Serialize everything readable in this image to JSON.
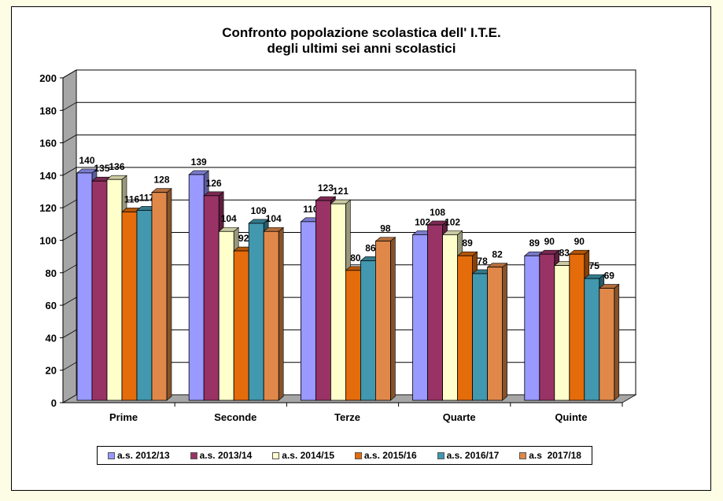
{
  "chart_data": {
    "type": "bar",
    "title": "Confronto popolazione scolastica dell' I.T.E.\ndegli ultimi sei anni scolastici",
    "title_lines": [
      "Confronto popolazione scolastica dell' I.T.E.",
      "degli ultimi sei anni scolastici"
    ],
    "categories": [
      "Prime",
      "Seconde",
      "Terze",
      "Quarte",
      "Quinte"
    ],
    "series": [
      {
        "name": "a.s. 2012/13",
        "color": "#9999ff",
        "values": [
          140,
          139,
          110,
          102,
          89
        ]
      },
      {
        "name": "a.s. 2013/14",
        "color": "#993366",
        "values": [
          135,
          126,
          123,
          108,
          90
        ]
      },
      {
        "name": "a.s. 2014/15",
        "color": "#ffffcc",
        "values": [
          136,
          104,
          121,
          102,
          83
        ]
      },
      {
        "name": "a.s. 2015/16",
        "color": "#e46c0a",
        "values": [
          116,
          92,
          80,
          89,
          90
        ]
      },
      {
        "name": "a.s. 2016/17",
        "color": "#4198af",
        "values": [
          117,
          109,
          86,
          78,
          75
        ]
      },
      {
        "name": "a.s  2017/18",
        "color": "#e0884a",
        "values": [
          128,
          104,
          98,
          82,
          69
        ]
      }
    ],
    "ylim": [
      0,
      200
    ],
    "yticks": [
      0,
      20,
      40,
      60,
      80,
      100,
      120,
      140,
      160,
      180,
      200
    ],
    "grid": true,
    "legend": "bottom",
    "style": "3d-column"
  }
}
